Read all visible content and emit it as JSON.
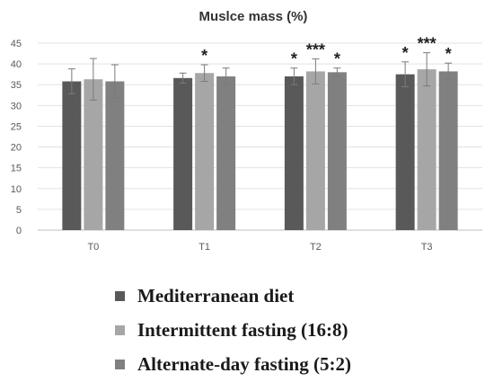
{
  "chart_data": {
    "type": "bar",
    "title": "Muslce mass (%)",
    "xlabel": "",
    "ylabel": "",
    "ylim": [
      0,
      45
    ],
    "yticks": [
      0,
      5,
      10,
      15,
      20,
      25,
      30,
      35,
      40,
      45
    ],
    "grid": true,
    "legend_position": "bottom",
    "categories": [
      "T0",
      "T1",
      "T2",
      "T3"
    ],
    "series": [
      {
        "name": "Mediterranean diet",
        "color": "#595959",
        "values": [
          35.8,
          36.6,
          37.0,
          37.5
        ],
        "errors": [
          3.0,
          1.2,
          2.0,
          3.0
        ],
        "significance": [
          "",
          "",
          "*",
          "*"
        ]
      },
      {
        "name": "Intermittent fasting (16:8)",
        "color": "#a6a6a6",
        "values": [
          36.3,
          37.8,
          38.2,
          38.7
        ],
        "errors": [
          5.0,
          2.0,
          3.0,
          4.0
        ],
        "significance": [
          "",
          "*",
          "***",
          "***"
        ]
      },
      {
        "name": "Alternate-day fasting (5:2)",
        "color": "#808080",
        "values": [
          35.8,
          37.0,
          38.0,
          38.2
        ],
        "errors": [
          4.0,
          2.0,
          1.0,
          2.0
        ],
        "significance": [
          "",
          "",
          "*",
          "*"
        ]
      }
    ]
  }
}
